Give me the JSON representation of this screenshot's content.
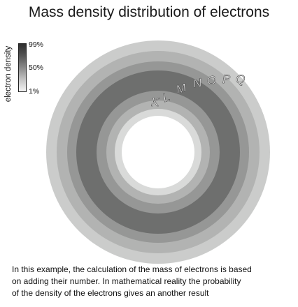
{
  "title": "Mass density distribution of electrons",
  "legend": {
    "axis_label": "electron density",
    "ticks": [
      "99%",
      "50%",
      "1%"
    ]
  },
  "shells": [
    "K",
    "L",
    "M",
    "N",
    "O",
    "P",
    "Q"
  ],
  "colors": {
    "outer": "#cbcccb",
    "band_light": "#b2b3b2",
    "band_mid": "#969796",
    "band_dark": "#6e6f6e",
    "inner_light": "#d9dad9",
    "core": "#ffffff"
  },
  "caption": [
    "In this example, the calculation of the mass of electrons is based",
    "on adding their number. In mathematical reality the probability",
    "of the density of the electrons gives an another result"
  ]
}
